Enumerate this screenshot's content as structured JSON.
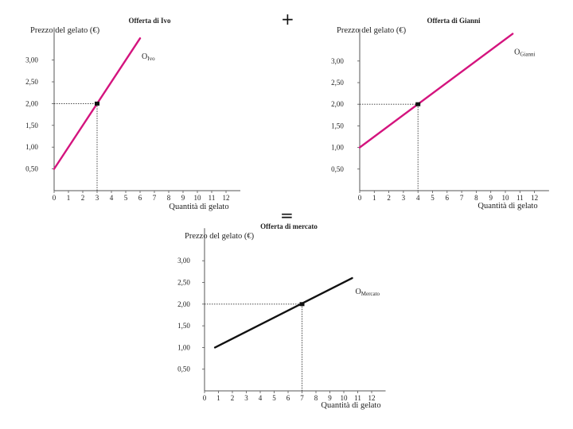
{
  "operators": {
    "plus": "+",
    "equals": "="
  },
  "chart_data": [
    {
      "type": "line",
      "title": "Offerta di Ivo",
      "ylabel": "Prezzo del gelato (€)",
      "xlabel": "Quantità di gelato",
      "xticks": [
        "0",
        "1",
        "2",
        "3",
        "4",
        "5",
        "6",
        "7",
        "8",
        "9",
        "10",
        "11",
        "12"
      ],
      "yticks": [
        "0,50",
        "1,00",
        "1,50",
        "2,00",
        "2,50",
        "3,00"
      ],
      "xlim": [
        0,
        13
      ],
      "ylim": [
        0,
        3.75
      ],
      "series": [
        {
          "name": "O",
          "sub": "Ivo",
          "color": "#d4147e",
          "x": [
            0,
            6
          ],
          "y": [
            0.5,
            3.5
          ]
        }
      ],
      "marker": {
        "x": 3,
        "y": 2.0
      }
    },
    {
      "type": "line",
      "title": "Offerta di Gianni",
      "ylabel": "Prezzo del gelato (€)",
      "xlabel": "Quantità di gelato",
      "xticks": [
        "0",
        "1",
        "2",
        "3",
        "4",
        "5",
        "6",
        "7",
        "8",
        "9",
        "10",
        "11",
        "12"
      ],
      "yticks": [
        "0,50",
        "1,00",
        "1,50",
        "2,00",
        "2,50",
        "3,00"
      ],
      "xlim": [
        0,
        13
      ],
      "ylim": [
        0,
        3.75
      ],
      "series": [
        {
          "name": "O",
          "sub": "Gianni",
          "color": "#d4147e",
          "x": [
            0,
            10.5
          ],
          "y": [
            1.0,
            3.63
          ]
        }
      ],
      "marker": {
        "x": 4,
        "y": 2.0
      }
    },
    {
      "type": "line",
      "title": "Offerta di mercato",
      "ylabel": "Prezzo del gelato (€)",
      "xlabel": "Quantità di gelato",
      "xticks": [
        "0",
        "1",
        "2",
        "3",
        "4",
        "5",
        "6",
        "7",
        "8",
        "9",
        "10",
        "11",
        "12"
      ],
      "yticks": [
        "0,50",
        "1,00",
        "1,50",
        "2,00",
        "2,50",
        "3,00"
      ],
      "xlim": [
        0,
        13
      ],
      "ylim": [
        0,
        3.75
      ],
      "series": [
        {
          "name": "O",
          "sub": "Mercato",
          "color": "#111111",
          "x": [
            0.75,
            10.6
          ],
          "y": [
            1.0,
            2.6
          ]
        }
      ],
      "marker": {
        "x": 7,
        "y": 2.0
      }
    }
  ]
}
